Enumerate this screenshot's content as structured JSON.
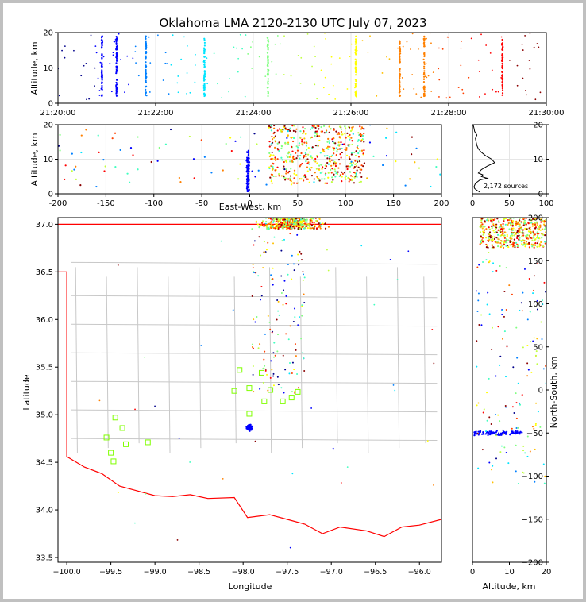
{
  "chart_data": {
    "title": "Oklahoma LMA 2120-2130 UTC July 07, 2023",
    "source_count_label": "2,172 sources",
    "colormap": [
      "#00008b",
      "#0000ff",
      "#0080ff",
      "#00e5ff",
      "#40ffc0",
      "#80ff80",
      "#c0ff40",
      "#ffff00",
      "#ffc000",
      "#ff8000",
      "#ff4000",
      "#ff0000",
      "#8b0000"
    ],
    "stations_color": "#80ff00",
    "boundary_color": "#ff0000",
    "county_color": "#c8c8c8",
    "panels": {
      "time_altitude": {
        "type": "scatter",
        "ylabel": "Altitude, km",
        "xlim": [
          0,
          10
        ],
        "ylim": [
          0,
          20
        ],
        "xtick_values": [
          0,
          2,
          4,
          6,
          8,
          10
        ],
        "xtick_labels": [
          "21:20:00",
          "21:22:00",
          "21:24:00",
          "21:26:00",
          "21:28:00",
          "21:30:00"
        ],
        "yticks": [
          0,
          10,
          20
        ],
        "grid": true,
        "bursts_minutes": [
          0.9,
          1.2,
          1.8,
          3.0,
          4.3,
          6.1,
          7.0,
          7.5,
          9.1
        ],
        "x_unit": "minutes after 21:20:00 UTC"
      },
      "ew_altitude": {
        "type": "scatter",
        "xlabel": "East-West, km",
        "ylabel": "Altitude, km",
        "xlim": [
          -200,
          200
        ],
        "ylim": [
          0,
          20
        ],
        "xticks": [
          -200,
          -150,
          -100,
          -50,
          0,
          50,
          100,
          150,
          200
        ],
        "yticks": [
          0,
          10,
          20
        ],
        "grid": true
      },
      "altitude_histogram": {
        "type": "line",
        "xlim": [
          0,
          100
        ],
        "ylim": [
          0,
          20
        ],
        "xticks": [
          0,
          50,
          100
        ],
        "yticks": [
          0,
          10,
          20
        ],
        "profile_alt_km": [
          0.5,
          1,
          1.5,
          2,
          3,
          4,
          4.5,
          5,
          5.5,
          6,
          7,
          8,
          9,
          10,
          11,
          12,
          13,
          14,
          15,
          16,
          17,
          18,
          19,
          20
        ],
        "profile_count": [
          10,
          6,
          3,
          2,
          4,
          10,
          20,
          12,
          14,
          8,
          12,
          20,
          30,
          26,
          18,
          12,
          8,
          6,
          5,
          4,
          6,
          3,
          2,
          1
        ]
      },
      "plan_view": {
        "type": "scatter",
        "xlabel": "Longitude",
        "ylabel": "Latitude",
        "xlim": [
          -100.1,
          -95.75
        ],
        "ylim": [
          33.45,
          37.07
        ],
        "xticks": [
          -100.0,
          -99.5,
          -99.0,
          -98.5,
          -98.0,
          -97.5,
          -97.0,
          -96.5,
          -96.0
        ],
        "xtick_labels": [
          "−100.0",
          "−99.5",
          "−99.0",
          "−98.5",
          "−98.0",
          "−97.5",
          "−97.0",
          "−96.5",
          "−96.0"
        ],
        "yticks": [
          33.5,
          34.0,
          34.5,
          35.0,
          35.5,
          36.0,
          36.5,
          37.0
        ],
        "ytick_labels": [
          "33.5",
          "34.0",
          "34.5",
          "35.0",
          "35.5",
          "36.0",
          "36.5",
          "37.0"
        ],
        "stations": [
          [
            -99.45,
            34.97
          ],
          [
            -99.55,
            34.76
          ],
          [
            -99.37,
            34.86
          ],
          [
            -99.5,
            34.6
          ],
          [
            -99.47,
            34.51
          ],
          [
            -99.33,
            34.69
          ],
          [
            -99.08,
            34.71
          ],
          [
            -98.04,
            35.47
          ],
          [
            -97.79,
            35.44
          ],
          [
            -98.1,
            35.25
          ],
          [
            -97.93,
            35.28
          ],
          [
            -97.93,
            35.01
          ],
          [
            -97.76,
            35.14
          ],
          [
            -97.69,
            35.26
          ],
          [
            -97.55,
            35.14
          ],
          [
            -97.45,
            35.18
          ],
          [
            -97.38,
            35.24
          ]
        ]
      },
      "ns_altitude": {
        "type": "scatter",
        "xlabel": "Altitude, km",
        "ylabel": "North-South, km",
        "xlim": [
          0,
          20
        ],
        "ylim": [
          -200,
          200
        ],
        "xticks": [
          0,
          10,
          20
        ],
        "yticks": [
          -200,
          -150,
          -100,
          -50,
          0,
          50,
          100,
          150,
          200
        ],
        "ytick_labels": [
          "−200",
          "−150",
          "−100",
          "−50",
          "0",
          "50",
          "100",
          "150",
          "200"
        ]
      }
    }
  }
}
